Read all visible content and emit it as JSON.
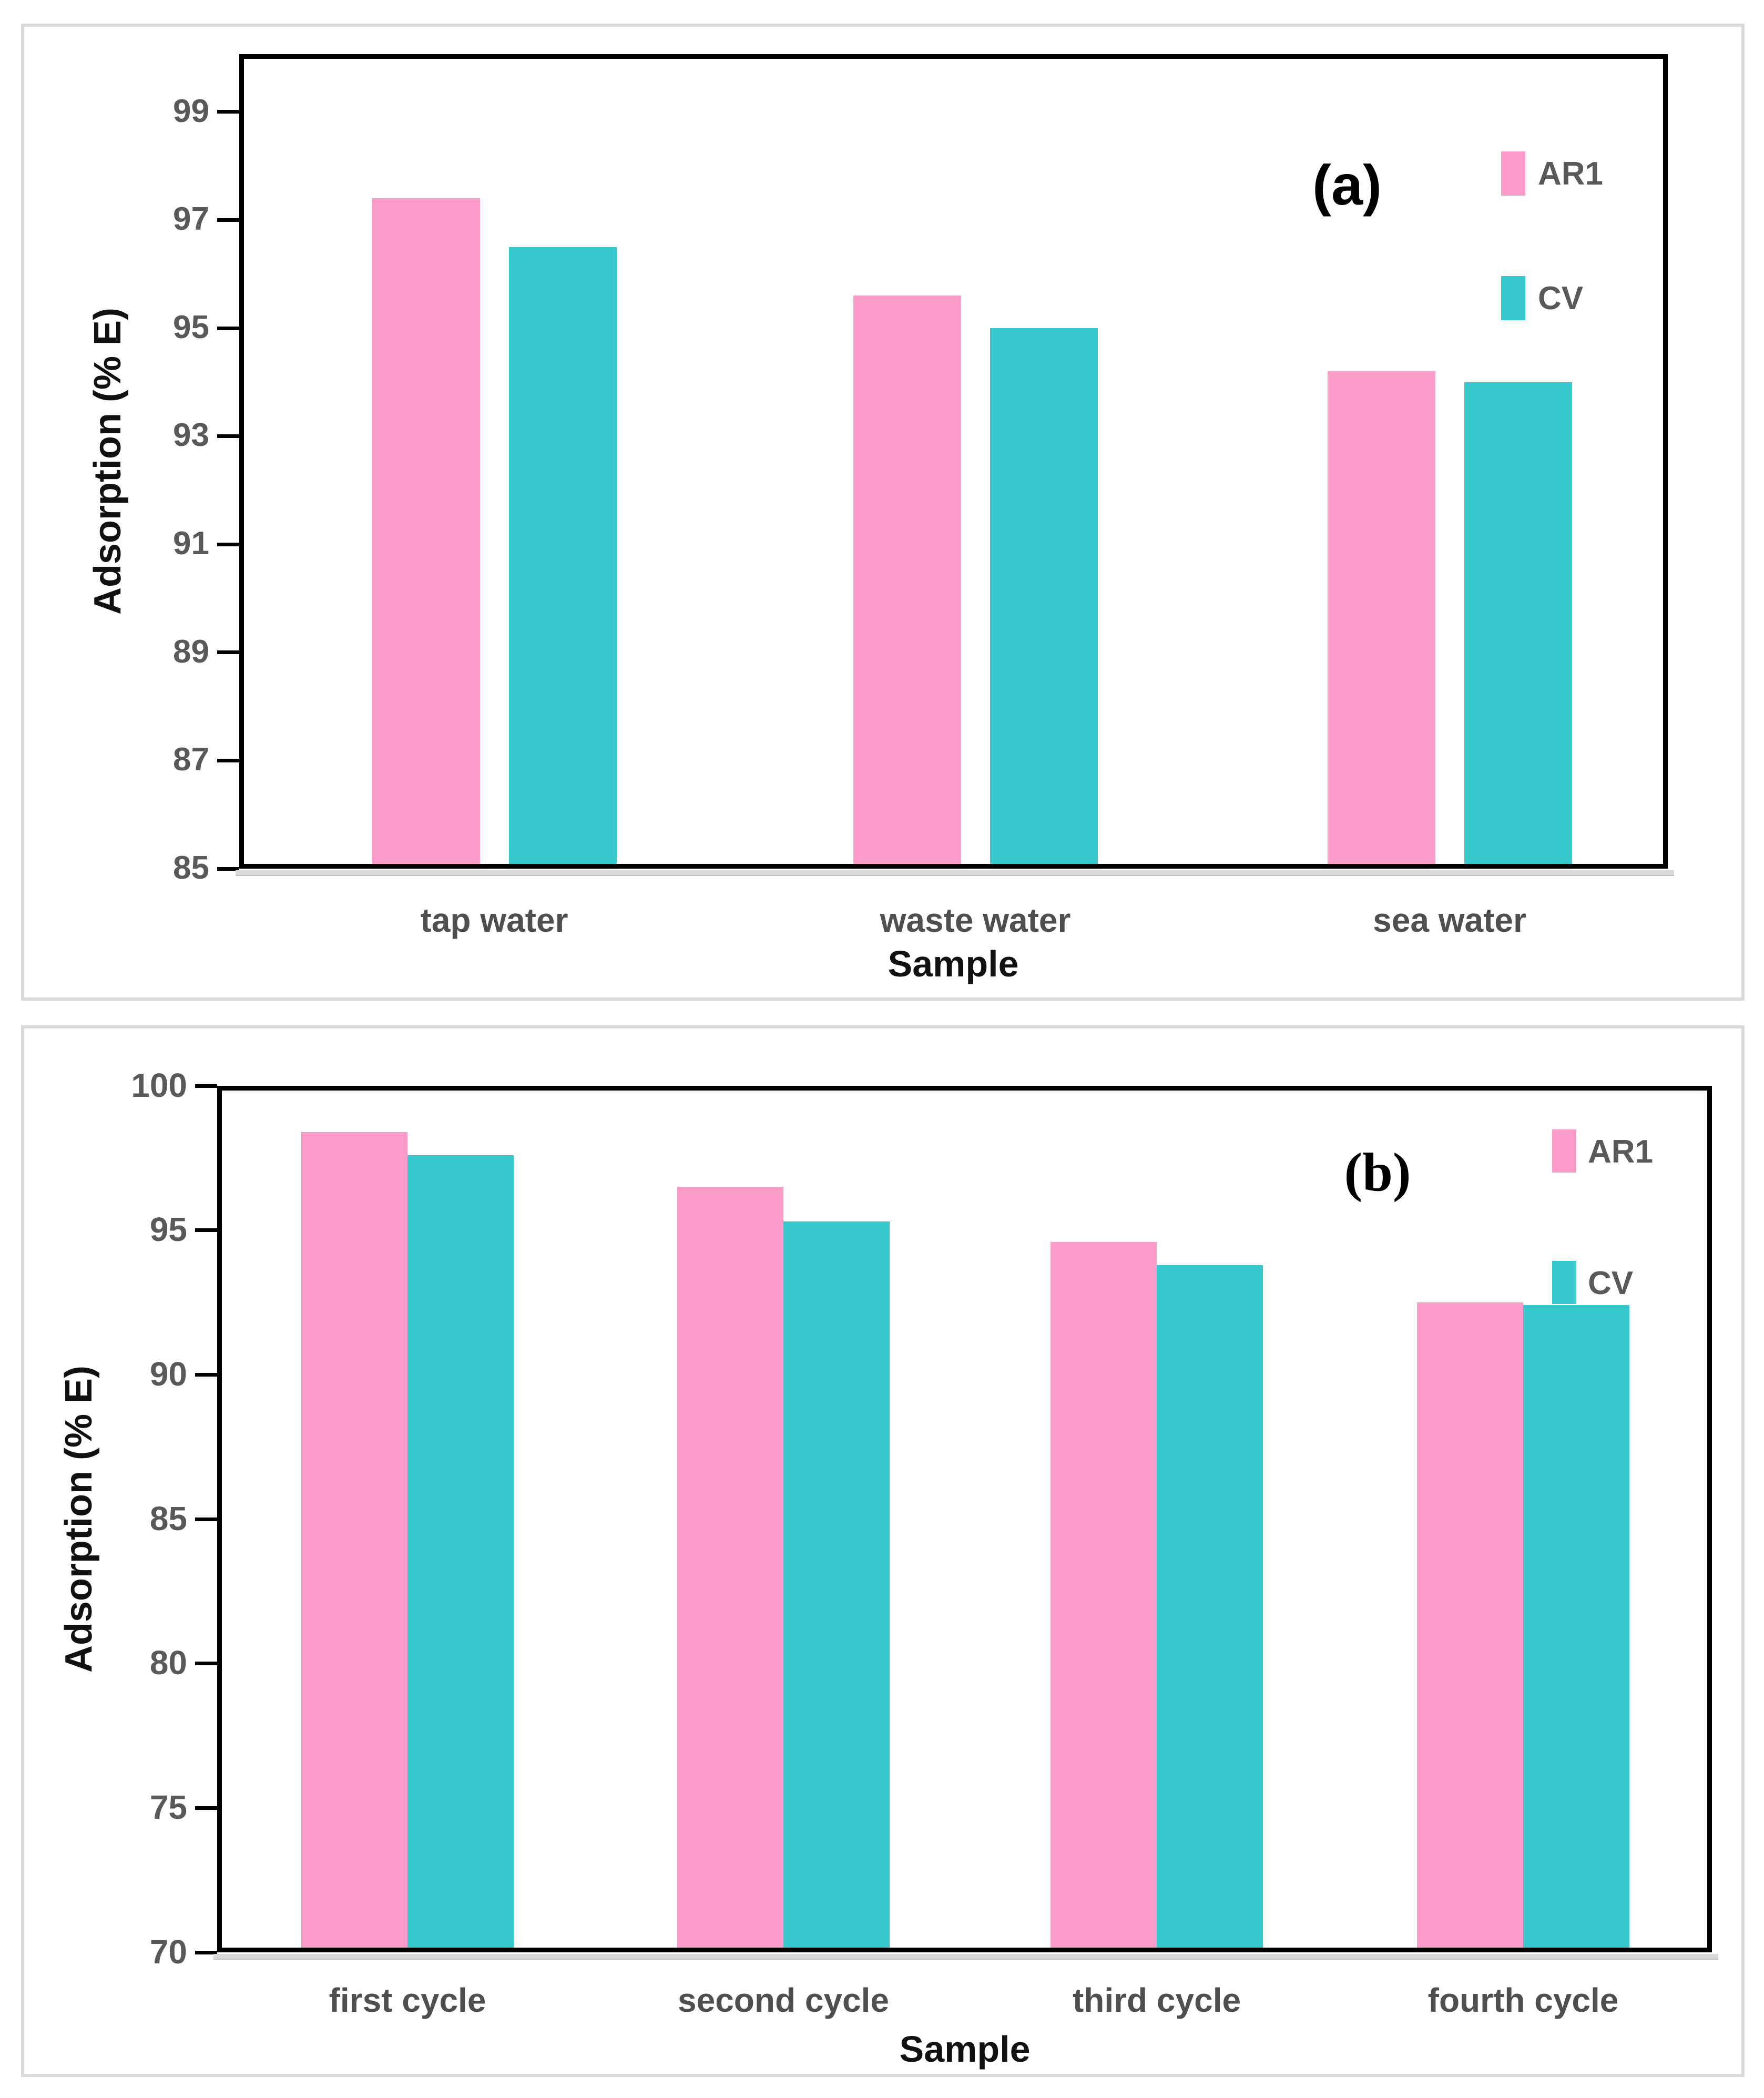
{
  "figure": {
    "background": "#ffffff",
    "panel_border_color": "#d9d9d9",
    "axis_frame_color": "#000000",
    "tick_label_color": "#595959",
    "category_label_color": "#4f4f4f",
    "legend_text_color": "#595959"
  },
  "chart_data": [
    {
      "type": "bar",
      "panel_label": "(a)",
      "xlabel": "Sample",
      "ylabel": "Adsorption (% E)",
      "categories": [
        "tap water",
        "waste water",
        "sea water"
      ],
      "series": [
        {
          "name": "AR1",
          "color": "#FB9BCA",
          "values": [
            97.4,
            95.6,
            94.2
          ]
        },
        {
          "name": "CV",
          "color": "#36C8CC",
          "values": [
            96.5,
            95.0,
            94.0
          ]
        }
      ],
      "ylim": [
        85,
        100.07
      ],
      "yticks": [
        99,
        97,
        95,
        93,
        91,
        89,
        87,
        85
      ],
      "legend_position": "top-right",
      "grid": false
    },
    {
      "type": "bar",
      "panel_label": "(b)",
      "xlabel": "Sample",
      "ylabel": "Adsorption (% E)",
      "categories": [
        "first cycle",
        "second cycle",
        "third cycle",
        "fourth cycle"
      ],
      "series": [
        {
          "name": "AR1",
          "color": "#FB9BCA",
          "values": [
            98.4,
            96.5,
            94.6,
            92.5
          ]
        },
        {
          "name": "CV",
          "color": "#36C8CC",
          "values": [
            97.6,
            95.3,
            93.8,
            92.4
          ]
        }
      ],
      "ylim": [
        70,
        100
      ],
      "yticks": [
        100,
        95,
        90,
        85,
        80,
        75,
        70
      ],
      "legend_position": "top-right",
      "grid": false
    }
  ]
}
